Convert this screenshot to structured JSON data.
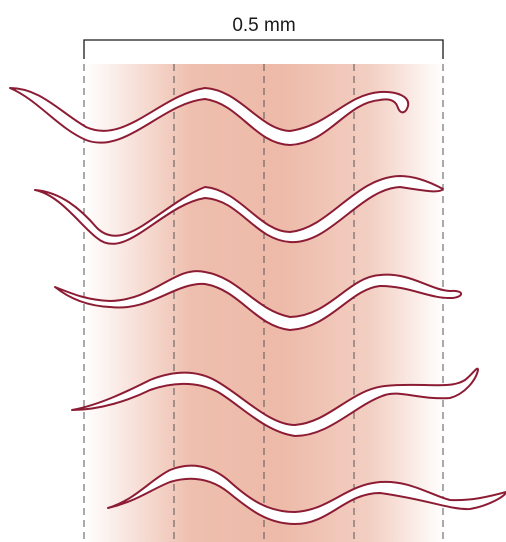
{
  "scale": {
    "label": "0.5 mm"
  },
  "colors": {
    "worm_outline": "#8c1c34",
    "band": "#e9a993",
    "guide": "#555555"
  },
  "figure": {
    "guide_count": 5,
    "worm_count": 5
  }
}
